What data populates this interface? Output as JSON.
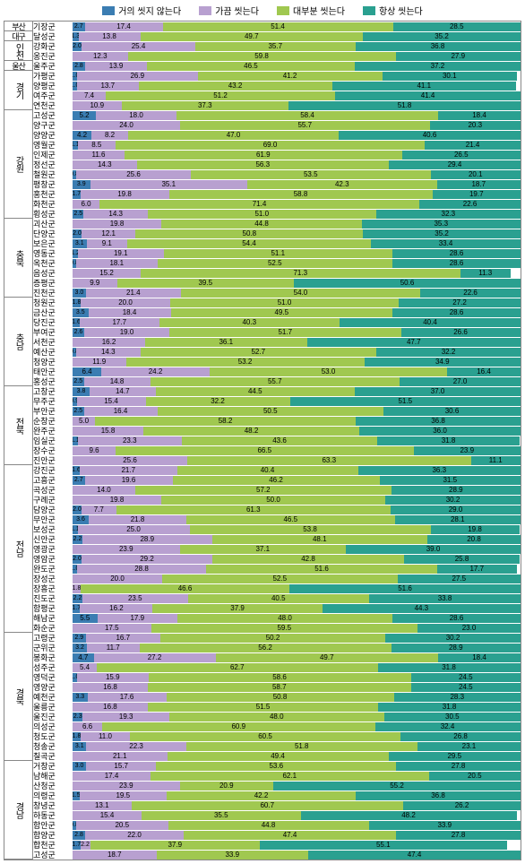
{
  "legend": {
    "items": [
      {
        "label": "거의 씻지 않는다",
        "color": "#3b7db2"
      },
      {
        "label": "가끔 씻는다",
        "color": "#b8a0d0"
      },
      {
        "label": "대부분 씻는다",
        "color": "#a0c850"
      },
      {
        "label": "항상 씻는다",
        "color": "#2aa090"
      }
    ]
  },
  "chart": {
    "colors": [
      "#3b7db2",
      "#b8a0d0",
      "#a0c850",
      "#2aa090"
    ],
    "text_color": "#000000",
    "label_fontsize": 9,
    "value_fontsize": 8,
    "regions": [
      {
        "name": "부산",
        "rows": [
          {
            "label": "기장군",
            "values": [
              2.7,
              17.4,
              51.4,
              28.5
            ]
          }
        ]
      },
      {
        "name": "대구",
        "rows": [
          {
            "label": "달성군",
            "values": [
              1.3,
              13.8,
              49.7,
              35.2
            ]
          }
        ]
      },
      {
        "name": "인천",
        "rows": [
          {
            "label": "강화군",
            "values": [
              2.0,
              25.4,
              35.7,
              36.8
            ]
          },
          {
            "label": "옹진군",
            "values": [
              0.0,
              12.3,
              59.8,
              27.9
            ]
          }
        ]
      },
      {
        "name": "울산",
        "rows": [
          {
            "label": "울주군",
            "values": [
              2.8,
              13.9,
              46.5,
              37.2
            ]
          }
        ]
      },
      {
        "name": "경기",
        "rows": [
          {
            "label": "가평군",
            "values": [
              1.0,
              26.9,
              41.2,
              30.1
            ]
          },
          {
            "label": "양평군",
            "values": [
              1.0,
              13.7,
              43.2,
              41.1
            ]
          },
          {
            "label": "여주군",
            "values": [
              0.0,
              7.4,
              51.2,
              41.4
            ]
          },
          {
            "label": "연천군",
            "values": [
              0.0,
              10.9,
              37.3,
              51.8
            ]
          }
        ]
      },
      {
        "name": "강원",
        "rows": [
          {
            "label": "고성군",
            "values": [
              5.2,
              18.0,
              58.4,
              18.4
            ]
          },
          {
            "label": "양구군",
            "values": [
              0.0,
              24.0,
              55.7,
              20.3
            ]
          },
          {
            "label": "양양군",
            "values": [
              4.2,
              8.2,
              47.0,
              40.6
            ]
          },
          {
            "label": "영월군",
            "values": [
              1.1,
              8.5,
              69.0,
              21.4
            ]
          },
          {
            "label": "인제군",
            "values": [
              0.0,
              11.6,
              61.9,
              26.5
            ]
          },
          {
            "label": "정선군",
            "values": [
              0.0,
              14.3,
              56.3,
              29.4
            ]
          },
          {
            "label": "철원군",
            "values": [
              0.8,
              25.6,
              53.5,
              20.1
            ]
          },
          {
            "label": "평창군",
            "values": [
              3.9,
              35.1,
              42.3,
              18.7
            ]
          },
          {
            "label": "홍천군",
            "values": [
              1.7,
              19.8,
              58.8,
              19.7
            ]
          },
          {
            "label": "화천군",
            "values": [
              0.0,
              6.0,
              71.4,
              22.6
            ]
          },
          {
            "label": "횡성군",
            "values": [
              2.5,
              14.3,
              51.0,
              32.3
            ]
          }
        ]
      },
      {
        "name": "충북",
        "rows": [
          {
            "label": "괴산군",
            "values": [
              0.0,
              19.8,
              44.8,
              35.3
            ]
          },
          {
            "label": "단양군",
            "values": [
              2.0,
              12.1,
              50.8,
              35.2
            ]
          },
          {
            "label": "보은군",
            "values": [
              3.1,
              9.1,
              54.4,
              33.4
            ]
          },
          {
            "label": "영동군",
            "values": [
              1.2,
              19.1,
              51.1,
              28.6
            ]
          },
          {
            "label": "옥천군",
            "values": [
              0.8,
              18.1,
              52.5,
              28.6
            ]
          },
          {
            "label": "음성군",
            "values": [
              0.0,
              15.2,
              71.3,
              11.3
            ]
          },
          {
            "label": "증평군",
            "values": [
              0.0,
              9.9,
              39.5,
              50.6
            ]
          },
          {
            "label": "진천군",
            "values": [
              3.0,
              21.4,
              54.0,
              22.6
            ]
          }
        ]
      },
      {
        "name": "충남",
        "rows": [
          {
            "label": "청원군",
            "values": [
              1.8,
              20.0,
              51.0,
              27.2
            ]
          },
          {
            "label": "금산군",
            "values": [
              3.5,
              18.4,
              49.5,
              28.6
            ]
          },
          {
            "label": "당진군",
            "values": [
              1.6,
              17.7,
              40.3,
              40.4
            ]
          },
          {
            "label": "부여군",
            "values": [
              2.6,
              19.0,
              51.7,
              26.6
            ]
          },
          {
            "label": "서천군",
            "values": [
              0.0,
              16.2,
              36.1,
              47.7
            ]
          },
          {
            "label": "예산군",
            "values": [
              0.8,
              14.3,
              52.7,
              32.2
            ]
          },
          {
            "label": "청양군",
            "values": [
              0.0,
              11.9,
              53.2,
              34.9
            ]
          },
          {
            "label": "태안군",
            "values": [
              6.4,
              24.2,
              53.0,
              16.4
            ]
          },
          {
            "label": "홍성군",
            "values": [
              2.5,
              14.8,
              55.7,
              27.0
            ]
          }
        ]
      },
      {
        "name": "전북",
        "rows": [
          {
            "label": "고창군",
            "values": [
              3.8,
              14.7,
              44.5,
              37.0
            ]
          },
          {
            "label": "무주군",
            "values": [
              0.9,
              15.4,
              32.2,
              51.5
            ]
          },
          {
            "label": "부안군",
            "values": [
              2.5,
              16.4,
              50.5,
              30.6
            ]
          },
          {
            "label": "순창군",
            "values": [
              0.0,
              5.0,
              58.2,
              36.8
            ]
          },
          {
            "label": "완주군",
            "values": [
              0.0,
              15.8,
              48.2,
              36.0
            ]
          },
          {
            "label": "임실군",
            "values": [
              1.1,
              23.3,
              43.6,
              31.8
            ]
          },
          {
            "label": "장수군",
            "values": [
              0.0,
              9.6,
              66.5,
              23.9
            ]
          },
          {
            "label": "진안군",
            "values": [
              0.0,
              25.6,
              63.3,
              11.1
            ]
          }
        ]
      },
      {
        "name": "전남",
        "rows": [
          {
            "label": "강진군",
            "values": [
              1.6,
              21.7,
              40.4,
              36.3
            ]
          },
          {
            "label": "고흥군",
            "values": [
              2.7,
              19.6,
              46.2,
              31.5
            ]
          },
          {
            "label": "곡성군",
            "values": [
              0.0,
              14.0,
              57.2,
              28.9
            ]
          },
          {
            "label": "구례군",
            "values": [
              0.0,
              19.8,
              50.0,
              30.2
            ]
          },
          {
            "label": "담양군",
            "values": [
              2.0,
              7.7,
              61.3,
              29.0
            ]
          },
          {
            "label": "무안군",
            "values": [
              3.6,
              21.8,
              46.5,
              28.1
            ]
          },
          {
            "label": "보성군",
            "values": [
              1.1,
              25.0,
              53.8,
              19.8
            ]
          },
          {
            "label": "신안군",
            "values": [
              2.2,
              28.9,
              48.1,
              20.8
            ]
          },
          {
            "label": "영광군",
            "values": [
              0.0,
              23.9,
              37.1,
              39.0
            ]
          },
          {
            "label": "영암군",
            "values": [
              2.0,
              29.2,
              42.8,
              25.8
            ]
          },
          {
            "label": "완도군",
            "values": [
              1.0,
              28.8,
              51.6,
              17.7
            ]
          },
          {
            "label": "장성군",
            "values": [
              0.0,
              20.0,
              52.5,
              27.5
            ]
          },
          {
            "label": "장흥군",
            "values": [
              0.0,
              1.8,
              46.6,
              51.6
            ]
          },
          {
            "label": "진도군",
            "values": [
              2.2,
              23.5,
              40.5,
              33.8
            ]
          },
          {
            "label": "함평군",
            "values": [
              1.7,
              16.2,
              37.9,
              44.3
            ]
          },
          {
            "label": "해남군",
            "values": [
              5.5,
              17.9,
              48.0,
              28.6
            ]
          },
          {
            "label": "화순군",
            "values": [
              0.0,
              17.5,
              59.5,
              23.0
            ]
          }
        ]
      },
      {
        "name": "경북",
        "rows": [
          {
            "label": "고령군",
            "values": [
              2.9,
              16.7,
              50.2,
              30.2
            ]
          },
          {
            "label": "군위군",
            "values": [
              3.2,
              11.7,
              56.2,
              28.9
            ]
          },
          {
            "label": "봉화군",
            "values": [
              4.7,
              27.2,
              49.7,
              18.4
            ]
          },
          {
            "label": "성주군",
            "values": [
              0.0,
              5.4,
              62.7,
              31.8
            ]
          },
          {
            "label": "영덕군",
            "values": [
              1.0,
              15.9,
              58.6,
              24.5
            ]
          },
          {
            "label": "영양군",
            "values": [
              0.0,
              16.8,
              58.7,
              24.5
            ]
          },
          {
            "label": "예천군",
            "values": [
              3.3,
              17.6,
              50.8,
              28.3
            ]
          },
          {
            "label": "울릉군",
            "values": [
              0.0,
              16.8,
              51.5,
              31.8
            ]
          },
          {
            "label": "울진군",
            "values": [
              2.3,
              19.3,
              48.0,
              30.5
            ]
          },
          {
            "label": "의성군",
            "values": [
              0.0,
              6.6,
              60.9,
              32.4
            ]
          },
          {
            "label": "청도군",
            "values": [
              1.8,
              11.0,
              60.5,
              26.8
            ]
          },
          {
            "label": "청송군",
            "values": [
              3.1,
              22.3,
              51.8,
              23.1
            ]
          },
          {
            "label": "칠곡군",
            "values": [
              0.0,
              21.1,
              49.4,
              29.5
            ]
          }
        ]
      },
      {
        "name": "경남",
        "rows": [
          {
            "label": "거창군",
            "values": [
              3.0,
              15.7,
              53.6,
              27.8
            ]
          },
          {
            "label": "남해군",
            "values": [
              0.0,
              17.4,
              62.1,
              20.5
            ]
          },
          {
            "label": "산청군",
            "values": [
              0.0,
              23.9,
              20.9,
              55.2
            ]
          },
          {
            "label": "의령군",
            "values": [
              1.5,
              19.5,
              42.2,
              36.8
            ]
          },
          {
            "label": "창녕군",
            "values": [
              0.0,
              13.1,
              60.7,
              26.2
            ]
          },
          {
            "label": "하동군",
            "values": [
              0.0,
              15.4,
              35.5,
              48.2
            ]
          },
          {
            "label": "함안군",
            "values": [
              0.8,
              20.5,
              44.8,
              33.9
            ]
          },
          {
            "label": "함양군",
            "values": [
              2.8,
              22.0,
              47.4,
              27.8
            ]
          },
          {
            "label": "합천군",
            "values": [
              1.7,
              2.2,
              37.9,
              55.1
            ]
          },
          {
            "label": "고성군",
            "values": [
              0.0,
              18.7,
              33.9,
              47.4
            ]
          }
        ]
      }
    ]
  }
}
